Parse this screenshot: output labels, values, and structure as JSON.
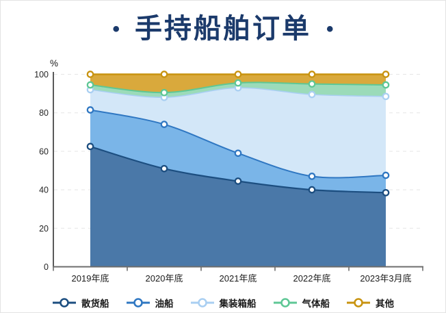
{
  "page": {
    "background": "#ffffff",
    "border_color": "#e3e3e3"
  },
  "title": {
    "text": "手持船舶订单",
    "bullet": "•",
    "color": "#1b3a6b"
  },
  "axes": {
    "y_unit_label": "%",
    "y_tick_labels": [
      "0",
      "20",
      "40",
      "60",
      "80",
      "100"
    ],
    "x_tick_labels": [
      "2019年底",
      "2020年底",
      "2021年底",
      "2022年底",
      "2023年3月底"
    ],
    "axis_color": "#6e6e6e",
    "grid_color": "#e5e5e5",
    "tick_label_color": "#262626"
  },
  "chart_data": {
    "type": "area",
    "stacked": true,
    "title": "手持船舶订单",
    "xlabel": "",
    "ylabel": "%",
    "ylim": [
      0,
      100
    ],
    "yticks": [
      0,
      20,
      40,
      60,
      80,
      100
    ],
    "grid": "horizontal dashed",
    "legend_position": "bottom",
    "categories": [
      "2019年底",
      "2020年底",
      "2021年底",
      "2022年底",
      "2023年3月底"
    ],
    "series": [
      {
        "name": "散货船",
        "key": "bulk-carrier",
        "values": [
          62.5,
          51,
          44.5,
          40,
          38.5
        ],
        "cumulative_top": [
          62.5,
          51,
          44.5,
          40,
          38.5
        ],
        "fill": "#4a78a8",
        "line": "#1c4e80",
        "line_width": 2.2
      },
      {
        "name": "油船",
        "key": "oil-tanker",
        "values": [
          19,
          23,
          14.5,
          7,
          9
        ],
        "cumulative_top": [
          81.5,
          74,
          59,
          47,
          47.5
        ],
        "fill": "#7ab5e8",
        "line": "#2f77c2",
        "line_width": 2
      },
      {
        "name": "集装箱船",
        "key": "container-ship",
        "values": [
          10.5,
          14,
          34,
          42.5,
          41
        ],
        "cumulative_top": [
          92,
          88,
          93,
          89.5,
          88.5
        ],
        "fill": "#d3e7f8",
        "line": "#a9cff2",
        "line_width": 1.6
      },
      {
        "name": "气体船",
        "key": "gas-carrier",
        "values": [
          2.5,
          2.5,
          2.5,
          5.5,
          6
        ],
        "cumulative_top": [
          94.5,
          90.5,
          95.5,
          95,
          94.5
        ],
        "fill": "#9bdbb9",
        "line": "#5ec795",
        "line_width": 2
      },
      {
        "name": "其他",
        "key": "other",
        "values": [
          5.5,
          9.5,
          4.5,
          5,
          5.5
        ],
        "cumulative_top": [
          100,
          100,
          100,
          100,
          100
        ],
        "fill": "#d9a93c",
        "line": "#c89310",
        "line_width": 2.4
      }
    ]
  }
}
